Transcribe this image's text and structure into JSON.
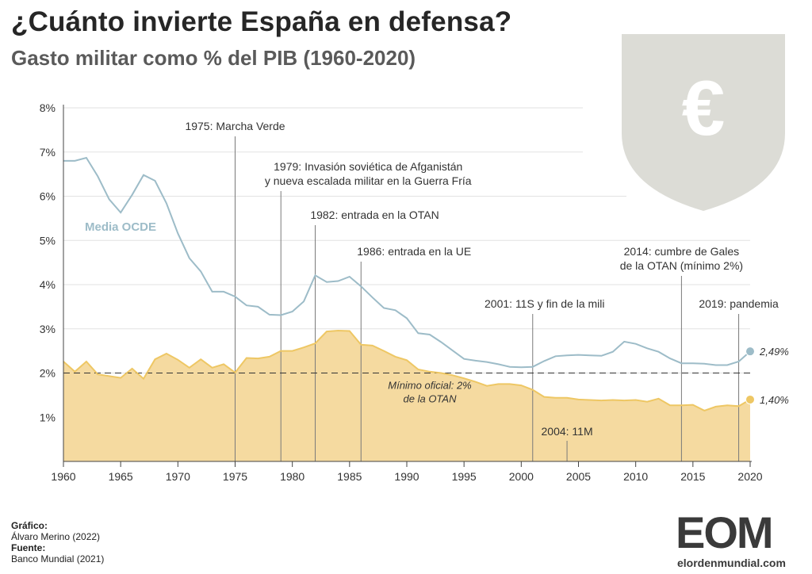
{
  "header": {
    "title": "¿Cuánto invierte España en defensa?",
    "subtitle": "Gasto militar como % del PIB (1960-2020)"
  },
  "credits": {
    "graphic_label": "Gráfico:",
    "graphic_value": "Álvaro Merino (2022)",
    "source_label": "Fuente:",
    "source_value": "Banco Mundial (2021)"
  },
  "logo": {
    "word": "EOM",
    "domain_a": "elordenmundial",
    "domain_b": ".com"
  },
  "badge": {
    "symbol": "€",
    "fill": "#dcdcd6"
  },
  "colors": {
    "spain": "#eec764",
    "spain_area": "#f5daa0",
    "ocde": "#9dbcc8",
    "axis": "#444444"
  },
  "chart_data": {
    "type": "area",
    "title": "",
    "xlabel": "",
    "ylabel": "",
    "xlim": [
      1960,
      2020
    ],
    "ylim": [
      0,
      8
    ],
    "x_ticks": [
      "1960",
      "1965",
      "1970",
      "1975",
      "1980",
      "1985",
      "1990",
      "1995",
      "2000",
      "2005",
      "2010",
      "2015",
      "2020"
    ],
    "y_ticks": [
      "1%",
      "2%",
      "3%",
      "4%",
      "5%",
      "6%",
      "7%",
      "8%"
    ],
    "grid": "horizontal",
    "x": [
      1960,
      1961,
      1962,
      1963,
      1964,
      1965,
      1966,
      1967,
      1968,
      1969,
      1970,
      1971,
      1972,
      1973,
      1974,
      1975,
      1976,
      1977,
      1978,
      1979,
      1980,
      1981,
      1982,
      1983,
      1984,
      1985,
      1986,
      1987,
      1988,
      1989,
      1990,
      1991,
      1992,
      1993,
      1994,
      1995,
      1996,
      1997,
      1998,
      1999,
      2000,
      2001,
      2002,
      2003,
      2004,
      2005,
      2006,
      2007,
      2008,
      2009,
      2010,
      2011,
      2012,
      2013,
      2014,
      2015,
      2016,
      2017,
      2018,
      2019,
      2020
    ],
    "series": [
      {
        "name": "Media OCDE",
        "values": [
          6.8,
          6.8,
          6.87,
          6.45,
          5.93,
          5.63,
          6.03,
          6.48,
          6.35,
          5.84,
          5.16,
          4.6,
          4.3,
          3.84,
          3.84,
          3.73,
          3.53,
          3.5,
          3.32,
          3.31,
          3.39,
          3.62,
          4.21,
          4.06,
          4.08,
          4.18,
          3.96,
          3.71,
          3.47,
          3.42,
          3.24,
          2.9,
          2.87,
          2.7,
          2.51,
          2.32,
          2.28,
          2.25,
          2.2,
          2.14,
          2.13,
          2.14,
          2.27,
          2.38,
          2.4,
          2.41,
          2.4,
          2.39,
          2.48,
          2.71,
          2.66,
          2.56,
          2.48,
          2.33,
          2.22,
          2.22,
          2.21,
          2.18,
          2.18,
          2.26,
          2.49
        ],
        "end_label": "2,49%"
      },
      {
        "name": "España",
        "values": [
          2.26,
          2.03,
          2.26,
          1.97,
          1.93,
          1.89,
          2.1,
          1.87,
          2.31,
          2.44,
          2.3,
          2.12,
          2.31,
          2.12,
          2.2,
          2.01,
          2.34,
          2.33,
          2.37,
          2.5,
          2.5,
          2.58,
          2.67,
          2.94,
          2.96,
          2.95,
          2.64,
          2.62,
          2.5,
          2.37,
          2.29,
          2.08,
          2.03,
          2.0,
          1.95,
          1.88,
          1.8,
          1.71,
          1.75,
          1.75,
          1.72,
          1.62,
          1.46,
          1.44,
          1.44,
          1.4,
          1.39,
          1.38,
          1.39,
          1.38,
          1.39,
          1.35,
          1.42,
          1.27,
          1.27,
          1.28,
          1.15,
          1.24,
          1.27,
          1.25,
          1.4
        ],
        "end_label": "1,40%"
      }
    ],
    "series_label": "Media OCDE",
    "reference_line": {
      "y": 2,
      "label_line1": "Mínimo oficial: 2%",
      "label_line2": "de la OTAN"
    },
    "annotations": [
      {
        "year": 1975,
        "lines": [
          "1975: Marcha Verde"
        ]
      },
      {
        "year": 1979,
        "lines": [
          "1979: Invasión soviética de Afganistán",
          "y nueva escalada militar en la Guerra Fría"
        ]
      },
      {
        "year": 1982,
        "lines": [
          "1982: entrada en la OTAN"
        ]
      },
      {
        "year": 1986,
        "lines": [
          "1986: entrada en la UE"
        ]
      },
      {
        "year": 2001,
        "lines": [
          "2001: 11S y fin de la mili"
        ]
      },
      {
        "year": 2004,
        "lines": [
          "2004: 11M"
        ]
      },
      {
        "year": 2014,
        "lines": [
          "2014: cumbre de Gales",
          "de la OTAN (mínimo 2%)"
        ]
      },
      {
        "year": 2019,
        "lines": [
          "2019: pandemia"
        ]
      }
    ]
  }
}
